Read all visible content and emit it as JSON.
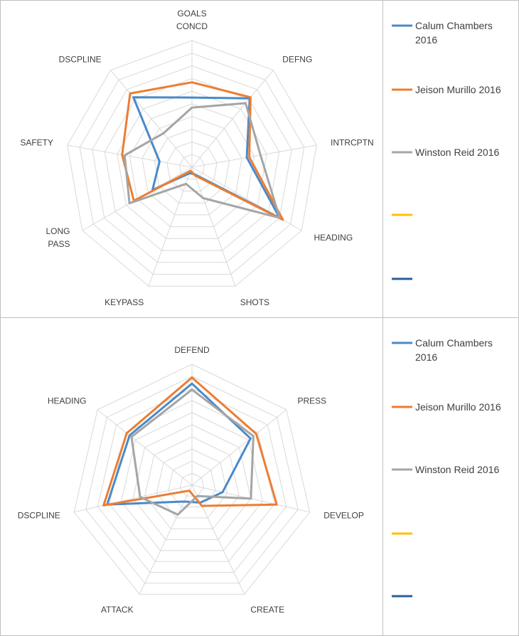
{
  "chart_data": [
    {
      "type": "radar",
      "axes": [
        [
          "GOALS",
          "CONCD"
        ],
        [
          "DEFNG"
        ],
        [
          "INTRCPTN"
        ],
        [
          "HEADING"
        ],
        [
          "SHOTS"
        ],
        [
          "KEYPASS"
        ],
        [
          "LONG",
          "PASS"
        ],
        [
          "SAFETY"
        ],
        [
          "DSCPLINE"
        ]
      ],
      "rlim": [
        0,
        10
      ],
      "grid": true,
      "legend_position": "right",
      "series": [
        {
          "name": [
            "Calum Chambers",
            "2016"
          ],
          "color": "#4a8ac9",
          "values": [
            5.5,
            7.1,
            4.4,
            8.0,
            0.6,
            0.5,
            3.6,
            2.6,
            7.2
          ]
        },
        {
          "name": [
            "Jeison Murillo 2016"
          ],
          "color": "#ed7d31",
          "values": [
            6.7,
            7.2,
            4.6,
            8.3,
            0.7,
            0.3,
            5.3,
            5.6,
            7.6
          ]
        },
        {
          "name": [
            "Winston Reid 2016"
          ],
          "color": "#a5a5a5",
          "values": [
            4.7,
            6.6,
            5.5,
            8.0,
            2.6,
            1.4,
            5.7,
            5.4,
            3.5
          ]
        },
        {
          "name": [
            ""
          ],
          "color": "#ffc000",
          "values": []
        },
        {
          "name": [
            ""
          ],
          "color": "#2e5d9e",
          "values": []
        }
      ]
    },
    {
      "type": "radar",
      "axes": [
        [
          "DEFEND"
        ],
        [
          "PRESS"
        ],
        [
          "DEVELOP"
        ],
        [
          "CREATE"
        ],
        [
          "ATTACK"
        ],
        [
          "DSCPLINE"
        ],
        [
          "HEADING"
        ]
      ],
      "rlim": [
        0,
        10
      ],
      "grid": true,
      "legend_position": "right",
      "series": [
        {
          "name": [
            "Calum Chambers",
            "2016"
          ],
          "color": "#4a8ac9",
          "values": [
            8.4,
            6.2,
            2.6,
            1.6,
            1.5,
            7.2,
            6.6
          ]
        },
        {
          "name": [
            "Jeison Murillo 2016"
          ],
          "color": "#ed7d31",
          "values": [
            8.9,
            6.8,
            7.2,
            1.9,
            0.5,
            7.5,
            6.9
          ]
        },
        {
          "name": [
            "Winston Reid 2016"
          ],
          "color": "#a5a5a5",
          "values": [
            7.9,
            6.5,
            5.0,
            1.0,
            2.7,
            4.4,
            6.4
          ]
        },
        {
          "name": [
            ""
          ],
          "color": "#ffc000",
          "values": []
        },
        {
          "name": [
            ""
          ],
          "color": "#2e5d9e",
          "values": []
        }
      ]
    }
  ]
}
